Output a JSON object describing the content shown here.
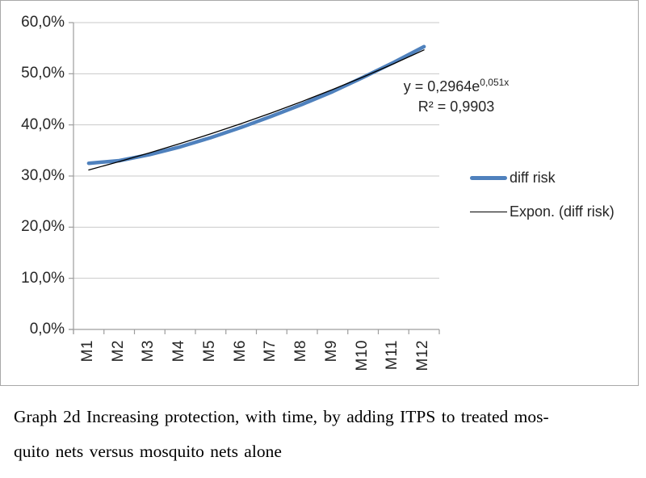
{
  "chart_data": {
    "type": "line",
    "categories": [
      "M1",
      "M2",
      "M3",
      "M4",
      "M5",
      "M6",
      "M7",
      "M8",
      "M9",
      "M10",
      "M11",
      "M12"
    ],
    "series": [
      {
        "name": "diff risk",
        "values_percent": [
          32.5,
          33.0,
          34.2,
          35.7,
          37.5,
          39.5,
          41.7,
          44.0,
          46.5,
          49.3,
          52.2,
          55.3
        ],
        "color": "#4F81BD",
        "style": "thick"
      },
      {
        "name": "Expon. (diff risk)",
        "kind": "exponential-trendline",
        "equation": "y = 0,2964e^(0,051x)",
        "coefficient": 0.2964,
        "exponent_rate": 0.051,
        "r_squared": 0.9903,
        "color": "#000000",
        "style": "thin"
      }
    ],
    "ylim": [
      0,
      60
    ],
    "y_tick_labels": [
      "60,0%",
      "50,0%",
      "40,0%",
      "30,0%",
      "20,0%",
      "10,0%",
      "0,0%"
    ],
    "x_tick_rotation_degrees": 90,
    "grid": "horizontal",
    "legend_position": "right",
    "title": ""
  },
  "equation_label": {
    "base": "y = 0,2964e",
    "superscript": "0,051x",
    "r_squared": "R² = 0,9903"
  },
  "legend": {
    "items": [
      {
        "label": "diff risk"
      },
      {
        "label": "Expon. (diff risk)"
      }
    ]
  },
  "caption": {
    "line1": "Graph 2d Increasing protection, with time, by adding ITPS to treated mos-",
    "line2": "quito nets versus mosquito nets alone"
  },
  "colors": {
    "series_blue": "#4F81BD",
    "trendline_black": "#000000",
    "gridline_gray": "#c9c9c9",
    "axis_gray": "#9d9d9d",
    "label_text": "#262626"
  }
}
